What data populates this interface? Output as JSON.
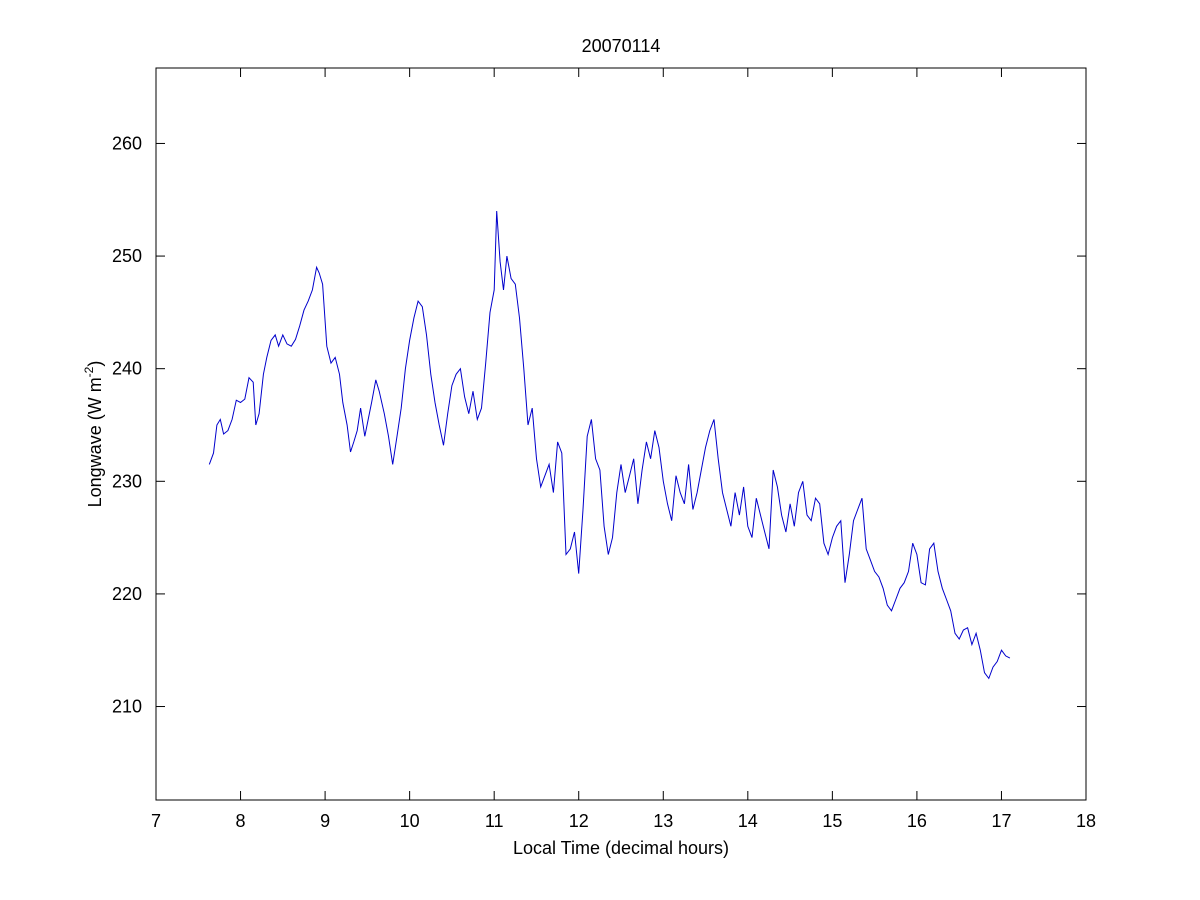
{
  "chart_data": {
    "type": "line",
    "title": "20070114",
    "xlabel": "Local Time (decimal hours)",
    "ylabel": "Longwave (W m",
    "ylabel_superscript": "-2",
    "ylabel_close": ")",
    "xlim": [
      7,
      18
    ],
    "ylim": [
      201.7,
      266.7
    ],
    "xticks": [
      7,
      8,
      9,
      10,
      11,
      12,
      13,
      14,
      15,
      16,
      17,
      18
    ],
    "yticks": [
      210,
      220,
      230,
      240,
      250,
      260
    ],
    "grid": false,
    "series": [
      {
        "color": "#0000cc",
        "x": [
          7.63,
          7.68,
          7.72,
          7.76,
          7.8,
          7.85,
          7.9,
          7.95,
          8.0,
          8.05,
          8.1,
          8.15,
          8.18,
          8.22,
          8.27,
          8.31,
          8.36,
          8.41,
          8.45,
          8.5,
          8.55,
          8.6,
          8.65,
          8.7,
          8.75,
          8.8,
          8.85,
          8.9,
          8.93,
          8.97,
          9.02,
          9.07,
          9.12,
          9.17,
          9.21,
          9.26,
          9.3,
          9.34,
          9.38,
          9.42,
          9.47,
          9.51,
          9.55,
          9.6,
          9.64,
          9.7,
          9.75,
          9.8,
          9.85,
          9.9,
          9.95,
          10.0,
          10.05,
          10.1,
          10.15,
          10.2,
          10.25,
          10.3,
          10.35,
          10.4,
          10.45,
          10.5,
          10.55,
          10.6,
          10.65,
          10.7,
          10.75,
          10.8,
          10.85,
          10.9,
          10.95,
          11.0,
          11.03,
          11.07,
          11.11,
          11.15,
          11.2,
          11.25,
          11.3,
          11.35,
          11.4,
          11.45,
          11.5,
          11.55,
          11.6,
          11.65,
          11.7,
          11.75,
          11.8,
          11.85,
          11.9,
          11.95,
          12.0,
          12.05,
          12.1,
          12.15,
          12.2,
          12.25,
          12.3,
          12.35,
          12.4,
          12.45,
          12.5,
          12.55,
          12.6,
          12.65,
          12.7,
          12.75,
          12.8,
          12.85,
          12.9,
          12.95,
          13.0,
          13.05,
          13.1,
          13.15,
          13.2,
          13.25,
          13.3,
          13.35,
          13.4,
          13.45,
          13.5,
          13.55,
          13.6,
          13.65,
          13.7,
          13.75,
          13.8,
          13.85,
          13.9,
          13.95,
          14.0,
          14.05,
          14.1,
          14.15,
          14.2,
          14.25,
          14.3,
          14.35,
          14.4,
          14.45,
          14.5,
          14.55,
          14.6,
          14.65,
          14.7,
          14.75,
          14.8,
          14.85,
          14.9,
          14.95,
          15.0,
          15.05,
          15.1,
          15.15,
          15.2,
          15.25,
          15.3,
          15.35,
          15.4,
          15.45,
          15.5,
          15.55,
          15.6,
          15.65,
          15.7,
          15.75,
          15.8,
          15.85,
          15.9,
          15.95,
          16.0,
          16.05,
          16.1,
          16.15,
          16.2,
          16.25,
          16.3,
          16.35,
          16.4,
          16.45,
          16.5,
          16.55,
          16.6,
          16.65,
          16.7,
          16.75,
          16.8,
          16.85,
          16.9,
          16.95,
          17.0,
          17.05,
          17.1
        ],
        "y": [
          231.5,
          232.5,
          235.0,
          235.5,
          234.2,
          234.5,
          235.5,
          237.2,
          237.0,
          237.3,
          239.2,
          238.8,
          235.0,
          236.0,
          239.5,
          241.0,
          242.5,
          243.0,
          242.0,
          243.0,
          242.2,
          242.0,
          242.6,
          243.8,
          245.2,
          246.0,
          247.0,
          249.0,
          248.5,
          247.5,
          242.0,
          240.5,
          241.0,
          239.5,
          237.0,
          235.0,
          232.6,
          233.5,
          234.5,
          236.5,
          234.0,
          235.5,
          237.0,
          239.0,
          238.0,
          236.0,
          234.0,
          231.5,
          234.0,
          236.5,
          240.0,
          242.5,
          244.5,
          246.0,
          245.5,
          243.0,
          239.5,
          237.0,
          235.0,
          233.2,
          236.0,
          238.5,
          239.5,
          240.0,
          237.5,
          236.0,
          238.0,
          235.5,
          236.5,
          240.5,
          245.0,
          247.0,
          254.0,
          249.5,
          247.0,
          250.0,
          248.0,
          247.5,
          244.5,
          240.0,
          235.0,
          236.5,
          232.0,
          229.5,
          230.5,
          231.5,
          229.0,
          233.5,
          232.5,
          223.5,
          224.0,
          225.5,
          221.8,
          227.5,
          234.0,
          235.5,
          232.0,
          231.0,
          226.0,
          223.5,
          225.0,
          229.0,
          231.5,
          229.0,
          230.5,
          232.0,
          228.0,
          231.0,
          233.5,
          232.0,
          234.5,
          233.0,
          230.0,
          228.0,
          226.5,
          230.5,
          229.0,
          228.0,
          231.5,
          227.5,
          229.0,
          231.0,
          233.0,
          234.5,
          235.5,
          232.0,
          229.0,
          227.5,
          226.0,
          229.0,
          227.0,
          229.5,
          226.0,
          225.0,
          228.5,
          227.0,
          225.5,
          224.0,
          231.0,
          229.5,
          227.0,
          225.5,
          228.0,
          226.0,
          229.0,
          230.0,
          227.0,
          226.5,
          228.5,
          228.0,
          224.5,
          223.5,
          225.0,
          226.0,
          226.5,
          221.0,
          223.5,
          226.5,
          227.5,
          228.5,
          224.0,
          223.0,
          222.0,
          221.5,
          220.5,
          219.0,
          218.5,
          219.5,
          220.5,
          221.0,
          222.0,
          224.5,
          223.5,
          221.0,
          220.8,
          224.0,
          224.5,
          222.0,
          220.5,
          219.5,
          218.5,
          216.5,
          216.0,
          216.8,
          217.0,
          215.5,
          216.5,
          215.0,
          213.0,
          212.5,
          213.5,
          214.0,
          215.0,
          214.5,
          214.3
        ]
      }
    ]
  }
}
